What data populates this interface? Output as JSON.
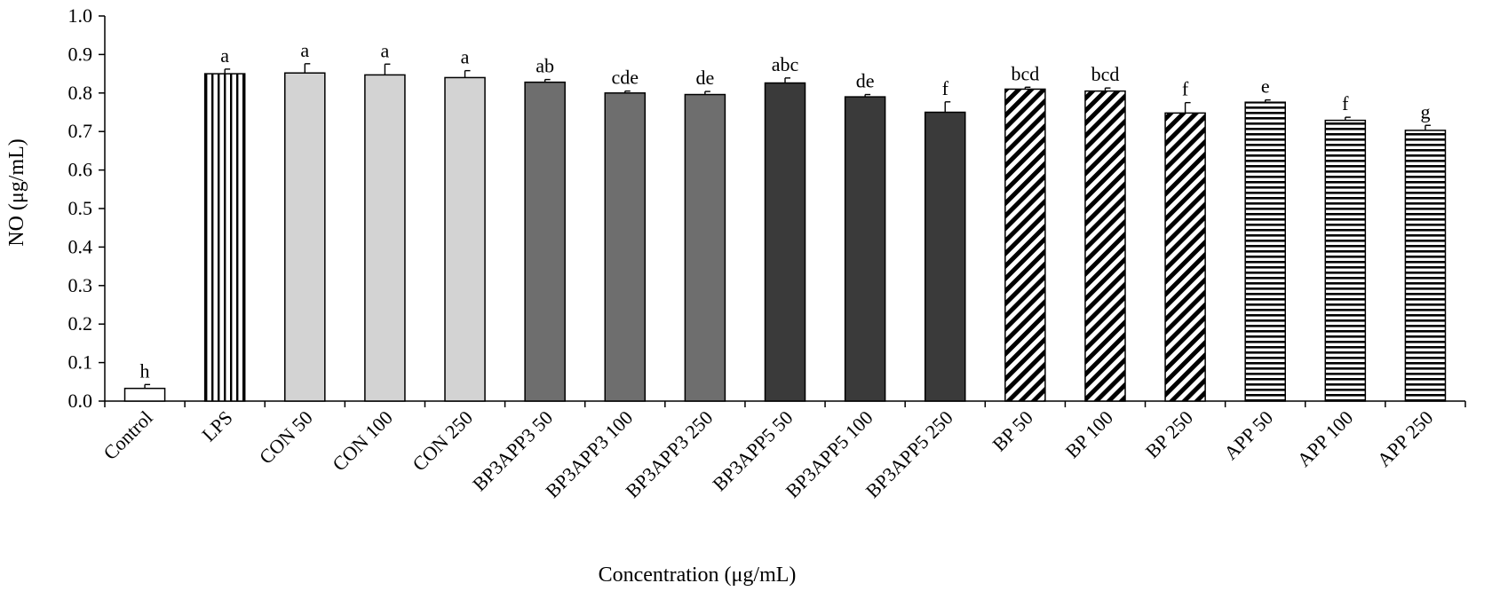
{
  "chart_data": {
    "type": "bar",
    "title": "",
    "xlabel": "Concentration (μg/mL)",
    "ylabel": "NO (μg/mL)",
    "ylim": [
      0,
      1.0
    ],
    "yticks": [
      "0.0",
      "0.1",
      "0.2",
      "0.3",
      "0.4",
      "0.5",
      "0.6",
      "0.7",
      "0.8",
      "0.9",
      "1.0"
    ],
    "grid": false,
    "categories": [
      "Control",
      "LPS",
      "CON 50",
      "CON 100",
      "CON 250",
      "BP3APP3 50",
      "BP3APP3 100",
      "BP3APP3 250",
      "BP3APP5 50",
      "BP3APP5 100",
      "BP3APP5 250",
      "BP 50",
      "BP 100",
      "BP 250",
      "APP 50",
      "APP 100",
      "APP 250"
    ],
    "values": [
      0.033,
      0.85,
      0.852,
      0.847,
      0.84,
      0.828,
      0.8,
      0.796,
      0.826,
      0.79,
      0.75,
      0.81,
      0.805,
      0.748,
      0.776,
      0.729,
      0.703
    ],
    "errors": [
      0.01,
      0.012,
      0.024,
      0.028,
      0.018,
      0.007,
      0.005,
      0.008,
      0.013,
      0.006,
      0.027,
      0.005,
      0.008,
      0.027,
      0.006,
      0.008,
      0.013
    ],
    "significance": [
      "h",
      "a",
      "a",
      "a",
      "a",
      "ab",
      "cde",
      "de",
      "abc",
      "de",
      "f",
      "bcd",
      "bcd",
      "f",
      "e",
      "f",
      "g"
    ],
    "fills": [
      "white",
      "vertical-stripes",
      "light-gray",
      "light-gray",
      "light-gray",
      "medium-gray",
      "medium-gray",
      "medium-gray",
      "dark-gray",
      "dark-gray",
      "dark-gray",
      "diagonal-stripes",
      "diagonal-stripes",
      "diagonal-stripes",
      "horizontal-stripes",
      "horizontal-stripes",
      "horizontal-stripes"
    ],
    "colors": {
      "light-gray": "#d3d3d3",
      "medium-gray": "#6e6e6e",
      "dark-gray": "#3a3a3a",
      "stroke": "#000000"
    }
  }
}
